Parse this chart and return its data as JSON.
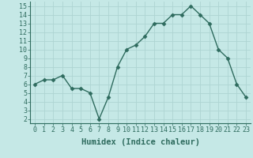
{
  "x": [
    0,
    1,
    2,
    3,
    4,
    5,
    6,
    7,
    8,
    9,
    10,
    11,
    12,
    13,
    14,
    15,
    16,
    17,
    18,
    19,
    20,
    21,
    22,
    23
  ],
  "y": [
    6,
    6.5,
    6.5,
    7,
    5.5,
    5.5,
    5,
    2,
    4.5,
    8,
    10,
    10.5,
    11.5,
    13,
    13,
    14,
    14,
    15,
    14,
    13,
    10,
    9,
    6,
    4.5
  ],
  "line_color": "#2e6b5e",
  "marker": "D",
  "marker_size": 2.5,
  "bg_color": "#c5e8e6",
  "grid_color": "#aed4d2",
  "xlabel": "Humidex (Indice chaleur)",
  "xlim": [
    -0.5,
    23.5
  ],
  "ylim": [
    1.5,
    15.5
  ],
  "yticks": [
    2,
    3,
    4,
    5,
    6,
    7,
    8,
    9,
    10,
    11,
    12,
    13,
    14,
    15
  ],
  "xticks": [
    0,
    1,
    2,
    3,
    4,
    5,
    6,
    7,
    8,
    9,
    10,
    11,
    12,
    13,
    14,
    15,
    16,
    17,
    18,
    19,
    20,
    21,
    22,
    23
  ],
  "tick_fontsize": 6,
  "label_fontsize": 7.5,
  "figsize": [
    3.2,
    2.0
  ],
  "dpi": 100
}
